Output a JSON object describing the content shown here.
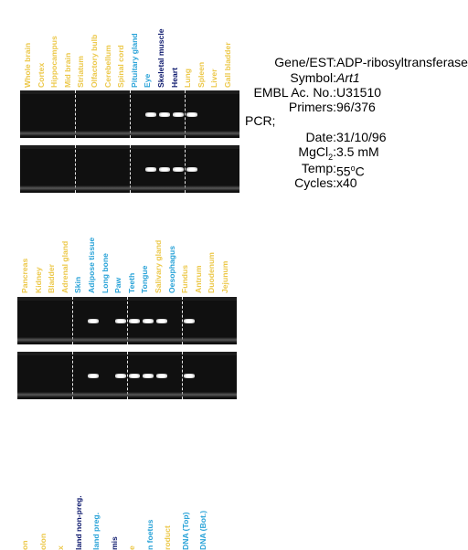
{
  "colors": {
    "yellow": "#ecc84a",
    "cyan": "#2aa3d8",
    "navy": "#0e1a6e",
    "gel": "#101010"
  },
  "panel1": {
    "lanes": [
      {
        "label": "Whole brain",
        "color": "yellow"
      },
      {
        "label": "Cortex",
        "color": "yellow"
      },
      {
        "label": "Hippocampus",
        "color": "yellow"
      },
      {
        "label": "Mid brain",
        "color": "yellow"
      },
      {
        "label": "Striatum",
        "color": "yellow"
      },
      {
        "label": "Olfactory bulb",
        "color": "yellow"
      },
      {
        "label": "Cerebellum",
        "color": "yellow"
      },
      {
        "label": "Spinal cord",
        "color": "yellow"
      },
      {
        "label": "Pituitary gland",
        "color": "cyan"
      },
      {
        "label": "Eye",
        "color": "cyan"
      },
      {
        "label": "Skeletal muscle",
        "color": "navy"
      },
      {
        "label": "Heart",
        "color": "navy"
      },
      {
        "label": "Lung",
        "color": "yellow"
      },
      {
        "label": "Spleen",
        "color": "yellow"
      },
      {
        "label": "Liver",
        "color": "yellow"
      },
      {
        "label": "Gall bladder",
        "color": "yellow"
      }
    ],
    "bands": [
      9,
      10,
      11,
      12
    ]
  },
  "panel2": {
    "lanes": [
      {
        "label": "Pancreas",
        "color": "yellow"
      },
      {
        "label": "Kidney",
        "color": "yellow"
      },
      {
        "label": "Bladder",
        "color": "yellow"
      },
      {
        "label": "Adrenal gland",
        "color": "yellow"
      },
      {
        "label": "Skin",
        "color": "cyan"
      },
      {
        "label": "Adipose tissue",
        "color": "cyan"
      },
      {
        "label": "Long bone",
        "color": "cyan"
      },
      {
        "label": "Paw",
        "color": "cyan"
      },
      {
        "label": "Teeth",
        "color": "cyan"
      },
      {
        "label": "Tongue",
        "color": "cyan"
      },
      {
        "label": "Salivary gland",
        "color": "yellow"
      },
      {
        "label": "Oesophagus",
        "color": "cyan"
      },
      {
        "label": "Fundus",
        "color": "yellow"
      },
      {
        "label": "Antrum",
        "color": "yellow"
      },
      {
        "label": "Duodenum",
        "color": "yellow"
      },
      {
        "label": "Jejunum",
        "color": "yellow"
      }
    ],
    "bands": [
      5,
      7,
      8,
      9,
      10,
      12
    ]
  },
  "panel3": {
    "labels": [
      {
        "text": "on",
        "color": "yellow"
      },
      {
        "text": "olon",
        "color": "yellow"
      },
      {
        "text": "x",
        "color": "yellow"
      },
      {
        "text": "land non-preg.",
        "color": "navy"
      },
      {
        "text": "land preg.",
        "color": "cyan"
      },
      {
        "text": "mis",
        "color": "navy"
      },
      {
        "text": "e",
        "color": "yellow"
      },
      {
        "text": "n foetus",
        "color": "cyan"
      },
      {
        "text": "roduct",
        "color": "yellow"
      },
      {
        "text": "DNA (Top)",
        "color": "cyan"
      },
      {
        "text": "DNA (Bot.)",
        "color": "cyan"
      }
    ]
  },
  "info": {
    "gene_key": "Gene/EST:",
    "gene_value": "ADP-ribosyltransferase",
    "symbol_key": "Symbol:",
    "symbol_value": "Art1",
    "embl_key": "EMBL Ac. No.:",
    "embl_value": "U31510",
    "primers_key": "Primers:",
    "primers_value": "96/376",
    "pcr_label": "PCR;",
    "date_key": "Date:",
    "date_value": "31/10/96",
    "mgcl_key_a": "MgCl",
    "mgcl_key_sub": "2",
    "mgcl_key_b": ":",
    "mgcl_value": "3.5 mM",
    "temp_key": "Temp:",
    "temp_value_a": "55",
    "temp_value_sup": "o",
    "temp_value_b": "C",
    "cycles_key": "Cycles:",
    "cycles_value": "x40"
  }
}
